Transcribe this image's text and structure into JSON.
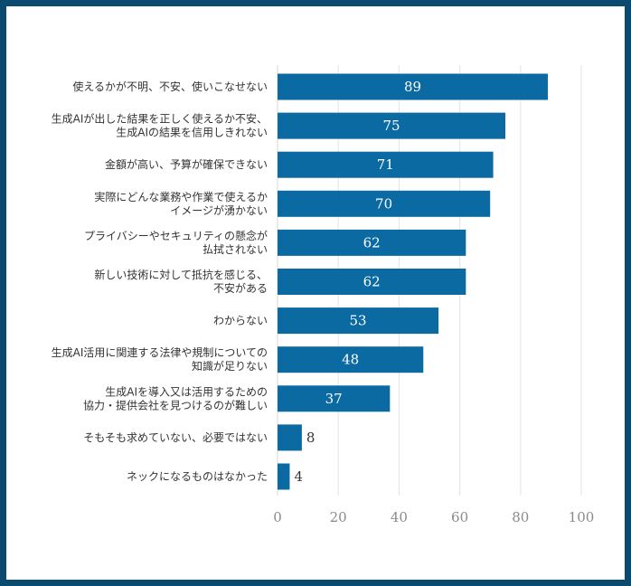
{
  "chart_data": {
    "type": "bar",
    "orientation": "horizontal",
    "title": "",
    "xlabel": "",
    "ylabel": "",
    "xlim": [
      0,
      100
    ],
    "ticks": [
      0,
      20,
      40,
      60,
      80,
      100
    ],
    "grid": true,
    "color": "#0a6aa1",
    "categories": [
      [
        "使えるかが不明、不安、使いこなせない"
      ],
      [
        "生成AIが出した結果を正しく使えるか不安、",
        "生成AIの結果を信用しきれない"
      ],
      [
        "金額が高い、予算が確保できない"
      ],
      [
        "実際にどんな業務や作業で使えるか",
        "イメージが湧かない"
      ],
      [
        "プライバシーやセキュリティの懸念が",
        "払拭されない"
      ],
      [
        "新しい技術に対して抵抗を感じる、",
        "不安がある"
      ],
      [
        "わからない"
      ],
      [
        "生成AI活用に関連する法律や規制についての",
        "知識が足りない"
      ],
      [
        "生成AIを導入又は活用するための",
        "協力・提供会社を見つけるのが難しい"
      ],
      [
        "そもそも求めていない、必要ではない"
      ],
      [
        "ネックになるものはなかった"
      ]
    ],
    "values": [
      89,
      75,
      71,
      70,
      62,
      62,
      53,
      48,
      37,
      8,
      4
    ]
  }
}
